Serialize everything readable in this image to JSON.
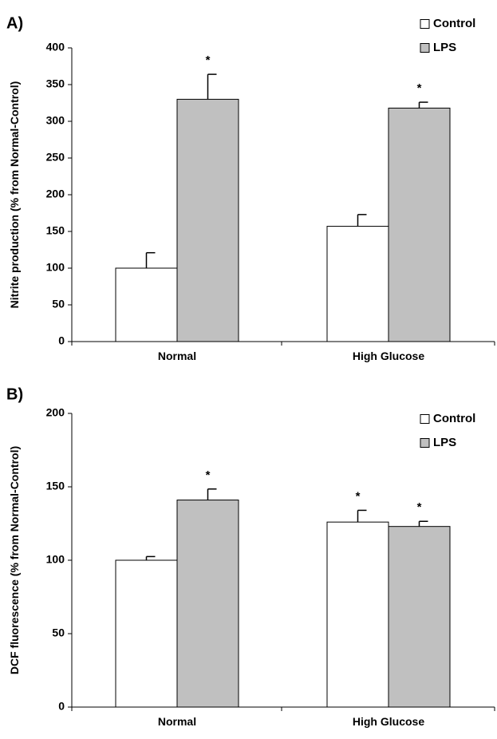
{
  "chart_data": [
    {
      "panel_label": "A)",
      "type": "bar",
      "title": "",
      "xlabel": "",
      "ylabel": "Nitrite production (% from Normal-Control)",
      "categories": [
        "Normal",
        "High Glucose"
      ],
      "ylim": [
        0,
        400
      ],
      "yticks": [
        "0",
        "50",
        "100",
        "150",
        "200",
        "250",
        "300",
        "350",
        "400"
      ],
      "series": [
        {
          "name": "Control",
          "color": "#ffffff",
          "values": [
            100,
            157
          ],
          "errors": [
            21,
            16
          ],
          "significance": [
            "",
            ""
          ]
        },
        {
          "name": "LPS",
          "color": "#c0c0c0",
          "values": [
            330,
            318
          ],
          "errors": [
            34,
            8
          ],
          "significance": [
            "*",
            "*"
          ]
        }
      ],
      "legend_position": "top-right",
      "grid": false
    },
    {
      "panel_label": "B)",
      "type": "bar",
      "title": "",
      "xlabel": "",
      "ylabel": "DCF fluorescence (% from Normal-Control)",
      "categories": [
        "Normal",
        "High Glucose"
      ],
      "ylim": [
        0,
        200
      ],
      "yticks": [
        "0",
        "50",
        "100",
        "150",
        "200"
      ],
      "series": [
        {
          "name": "Control",
          "color": "#ffffff",
          "values": [
            100,
            126
          ],
          "errors": [
            2.5,
            8
          ],
          "significance": [
            "",
            "*"
          ]
        },
        {
          "name": "LPS",
          "color": "#c0c0c0",
          "values": [
            141,
            123
          ],
          "errors": [
            7.5,
            3.5
          ],
          "significance": [
            "*",
            "*"
          ]
        }
      ],
      "legend_position": "top-right",
      "grid": false
    }
  ]
}
